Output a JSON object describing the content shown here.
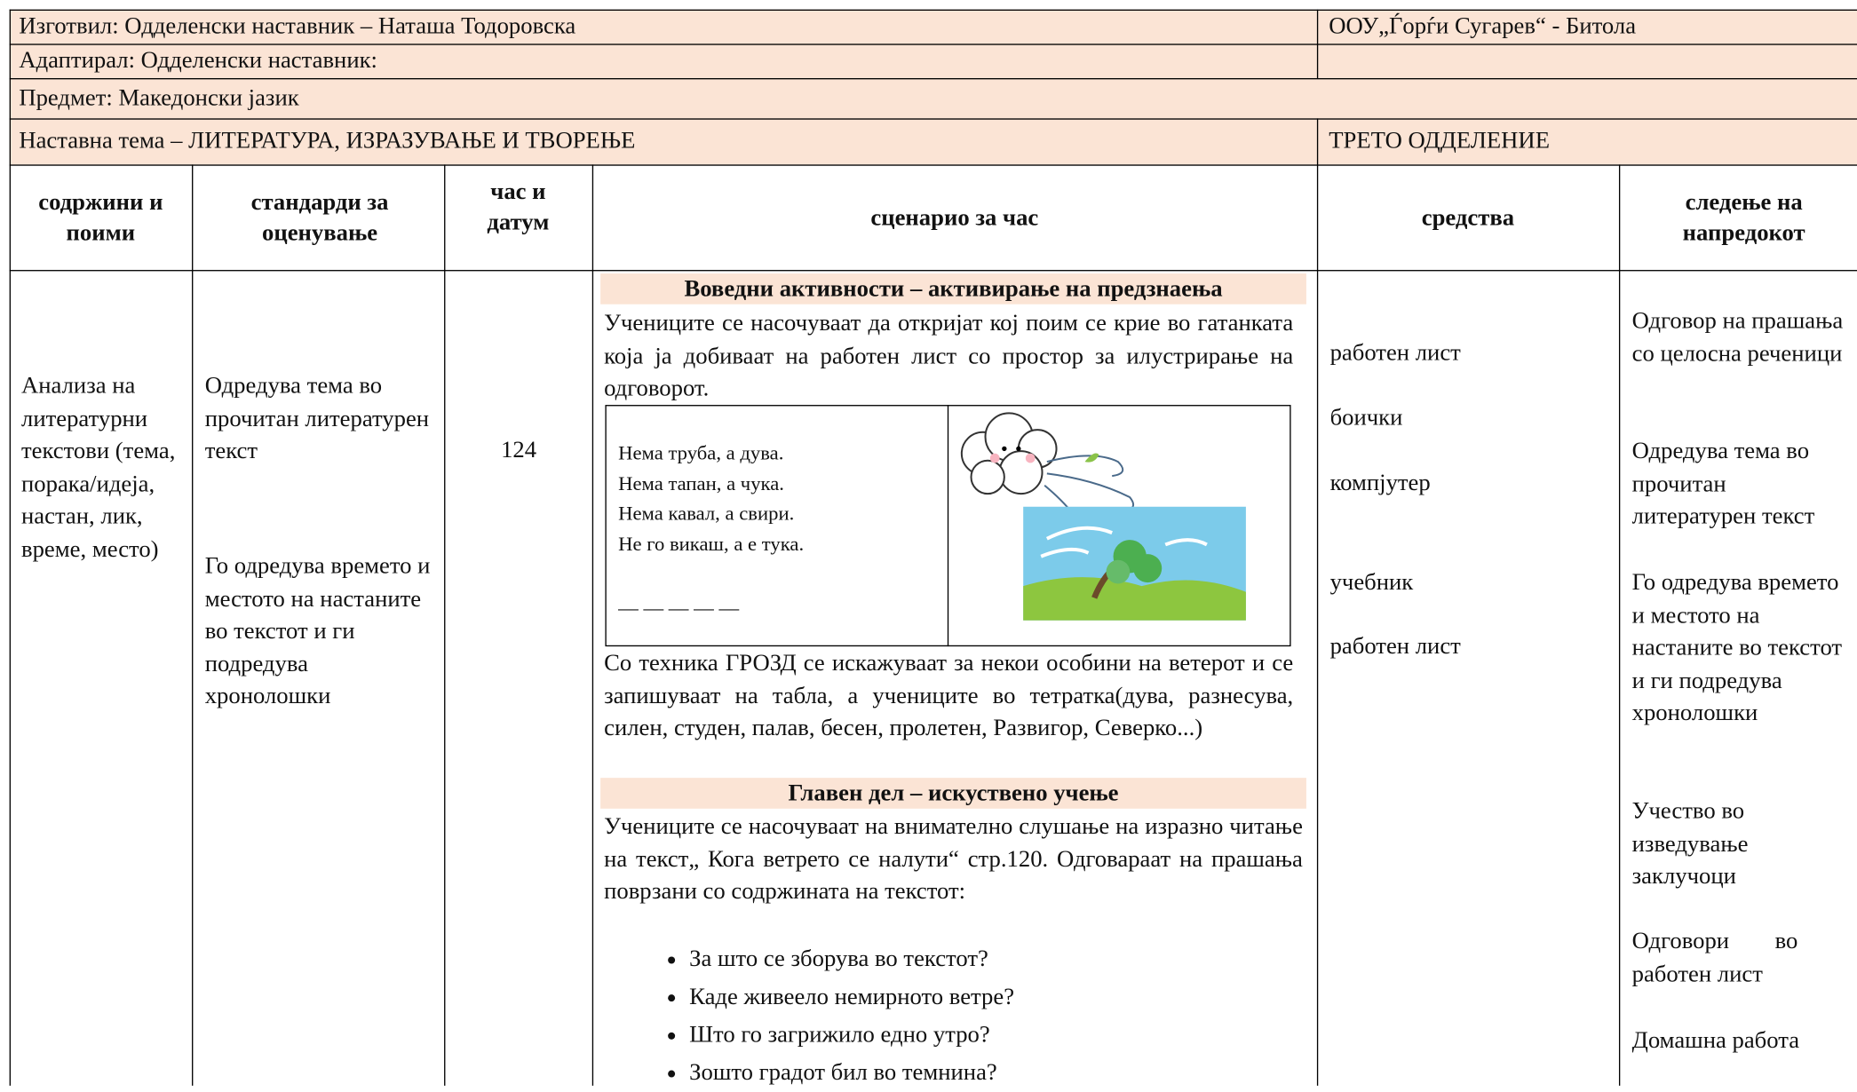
{
  "header": {
    "author": "Изготвил: Одделенски наставник – Наташа Тодоровска",
    "school": "ООУ„Ѓорѓи Сугарев“ - Битола",
    "adapted": "Адаптирал: Одделенски наставник:",
    "subject": "Предмет: Македонски јазик",
    "topic": "Наставна тема – ЛИТЕРАТУРА, ИЗРАЗУВАЊЕ И ТВОРЕЊЕ",
    "grade": "ТРЕТО ОДДЕЛЕНИЕ"
  },
  "table": {
    "columns": [
      "содржини и поими",
      "стандарди за оценување",
      "час и датум",
      "сценарио за час",
      "средства",
      "следење на напредокот"
    ],
    "row": {
      "contents": "Анализа на литературни текстови (тема, порака/идеја, настан, лик, време, место)",
      "standards": [
        "Одредува тема во прочитан литературен текст",
        "Го одредува времето и местото на настаните во текстот и ги подредува хронолошки"
      ],
      "lesson": "124",
      "scenario": {
        "intro_heading": "Воведни активности – активирање на предзнаења",
        "intro_text": "Учениците се насочуваат да откријат кој поим се крие во гатанката која ја добиваат на работен лист со простор за илустрирање на одговорот.",
        "riddle": [
          "Нема труба, а дува.",
          "Нема тапан, а чука.",
          "Нема кавал, а свири.",
          "Не го викаш, а е тука."
        ],
        "answer_blank": "— — — — —",
        "cluster_text": "Со техника ГРОЗД се искажуваат за некои особини на ветерот и се запишуваат на табла, а учениците во тетратка(дува, разнесува, силен, студен, палав, бесен, пролетен, Развигор, Северко...)",
        "main_heading": "Главен дел – искуствено учење",
        "main_text": "Учениците се насочуваат на внимателно слушање на изразно читање на текст„ Кога ветрето се налути“ стр.120. Одговараат на прашања поврзани со содржината на текстот:",
        "questions": [
          "За што се зборува во текстот?",
          "Каде живеело немирното ветре?",
          "Што го загрижило едно утро?",
          "Зошто градот бил во темнина?"
        ]
      },
      "resources": [
        "работен лист",
        "боички",
        "компјутер",
        "учебник",
        "работен лист"
      ],
      "progress": [
        "Одговор на прашања со целосна реченици",
        "Одредува тема во прочитан литературен текст",
        "Го одредува времето и местото на настаните во текстот и ги подредува хронолошки",
        "Учество во изведување заклучоци",
        "Одговори во работен лист",
        "Домашна работа"
      ]
    }
  }
}
